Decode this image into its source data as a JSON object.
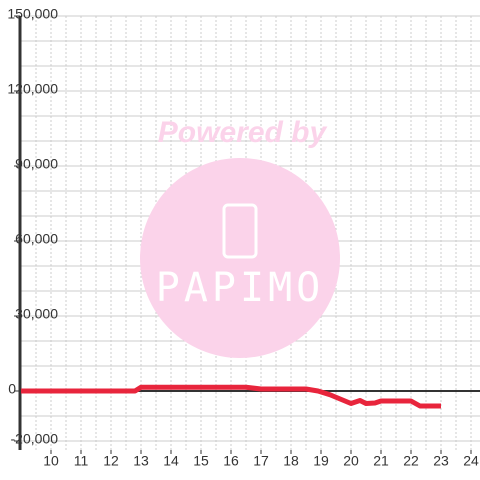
{
  "chart_data": {
    "type": "line",
    "x": [
      9,
      12.8,
      13,
      16.5,
      17,
      18.5,
      18.9,
      19.3,
      20,
      20.3,
      20.5,
      20.8,
      21,
      22,
      22.3,
      23
    ],
    "series": [
      {
        "color": "#e8253c",
        "values": [
          0,
          0,
          1500,
          1500,
          800,
          800,
          0,
          -1500,
          -5000,
          -3800,
          -5000,
          -4800,
          -4000,
          -4000,
          -6000,
          -6000
        ]
      }
    ],
    "xlim": [
      9,
      24.3
    ],
    "xticks": [
      10,
      11,
      12,
      13,
      14,
      15,
      16,
      17,
      18,
      19,
      20,
      21,
      22,
      23,
      24
    ],
    "ylim": [
      -23600,
      150000
    ],
    "yticks": [
      {
        "value": -20000,
        "label": "-20,000"
      },
      0,
      {
        "value": 30000,
        "label": "30,000"
      },
      {
        "value": 60000,
        "label": "60,000"
      },
      {
        "value": 90000,
        "label": "90,000"
      },
      {
        "value": 120000,
        "label": "120,000"
      },
      {
        "value": 150000,
        "label": "150,000"
      }
    ],
    "y_minor_step": 10000,
    "x_minor_step": 0.5,
    "grid": true,
    "watermark": {
      "top": "Powered by",
      "bottom": "PAPIMO"
    }
  }
}
